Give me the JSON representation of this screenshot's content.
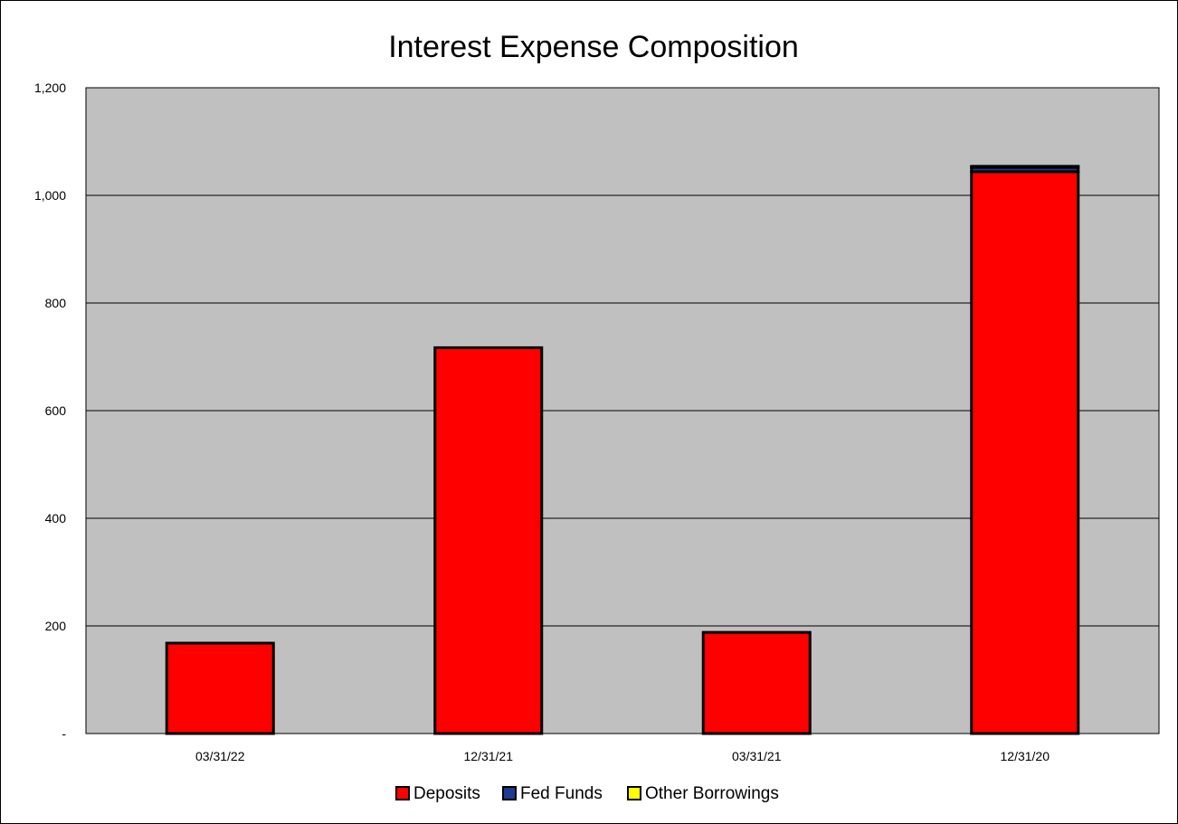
{
  "chart_data": {
    "type": "bar",
    "stacked": true,
    "title": "Interest Expense Composition",
    "xlabel": "",
    "ylabel": "",
    "categories": [
      "03/31/22",
      "12/31/21",
      "03/31/21",
      "12/31/20"
    ],
    "series": [
      {
        "name": "Deposits",
        "color": "#ff0000",
        "values": [
          168,
          717,
          188,
          1044
        ]
      },
      {
        "name": "Fed Funds",
        "color": "#1f3a93",
        "values": [
          0,
          0,
          0,
          8
        ]
      },
      {
        "name": "Other Borrowings",
        "color": "#ffff00",
        "values": [
          0,
          0,
          0,
          2
        ]
      }
    ],
    "ylim": [
      0,
      1200
    ],
    "yticks": [
      0,
      200,
      400,
      600,
      800,
      1000,
      1200
    ],
    "ytick_labels": [
      "-",
      "200",
      "400",
      "600",
      "800",
      "1,000",
      "1,200"
    ],
    "grid": true,
    "plot_background": "#c0c0c0",
    "legend_position": "bottom"
  }
}
